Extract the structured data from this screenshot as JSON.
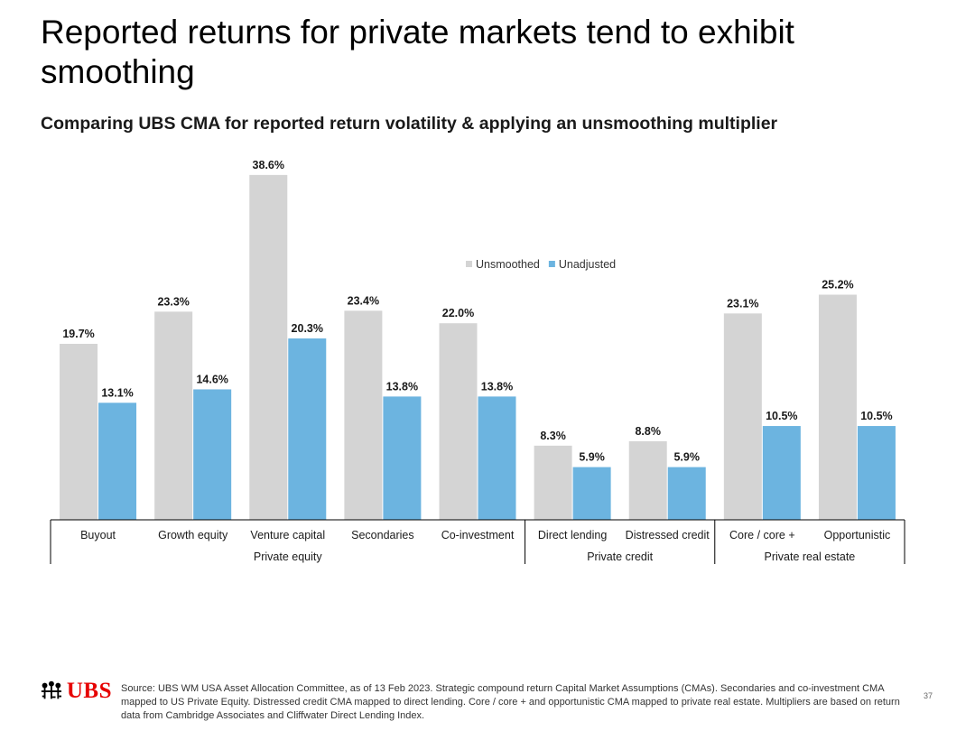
{
  "page": {
    "title": "Reported returns for private markets tend to exhibit smoothing",
    "subtitle": "Comparing UBS CMA for reported return volatility & applying an unsmoothing multiplier",
    "source": "Source: UBS WM USA Asset Allocation Committee, as of 13 Feb 2023. Strategic compound return Capital Market Assumptions (CMAs).  Secondaries and co-investment CMA mapped to US Private Equity. Distressed credit CMA mapped to direct lending. Core / core + and opportunistic CMA mapped to private real estate. Multipliers are based on return data from Cambridge Associates and Cliffwater Direct Lending Index.",
    "page_number": "37",
    "logo_text": "UBS"
  },
  "colors": {
    "unsmoothed": "#d4d4d4",
    "unadjusted": "#6cb4e0",
    "brand_red": "#e60000"
  },
  "chart_data": {
    "type": "bar",
    "title": "",
    "xlabel": "",
    "ylabel": "",
    "ylim": [
      0,
      40
    ],
    "grid": false,
    "legend_position": "top-center",
    "value_suffix": "%",
    "categories": [
      "Buyout",
      "Growth equity",
      "Venture capital",
      "Secondaries",
      "Co-investment",
      "Direct lending",
      "Distressed credit",
      "Core / core +",
      "Opportunistic"
    ],
    "groups": [
      {
        "label": "Private equity",
        "categories": [
          "Buyout",
          "Growth equity",
          "Venture capital",
          "Secondaries",
          "Co-investment"
        ]
      },
      {
        "label": "Private credit",
        "categories": [
          "Direct lending",
          "Distressed credit"
        ]
      },
      {
        "label": "Private real estate",
        "categories": [
          "Core / core +",
          "Opportunistic"
        ]
      }
    ],
    "series": [
      {
        "name": "Unsmoothed",
        "values": [
          19.7,
          23.3,
          38.6,
          23.4,
          22.0,
          8.3,
          8.8,
          23.1,
          25.2
        ]
      },
      {
        "name": "Unadjusted",
        "values": [
          13.1,
          14.6,
          20.3,
          13.8,
          13.8,
          5.9,
          5.9,
          10.5,
          10.5
        ]
      }
    ]
  }
}
